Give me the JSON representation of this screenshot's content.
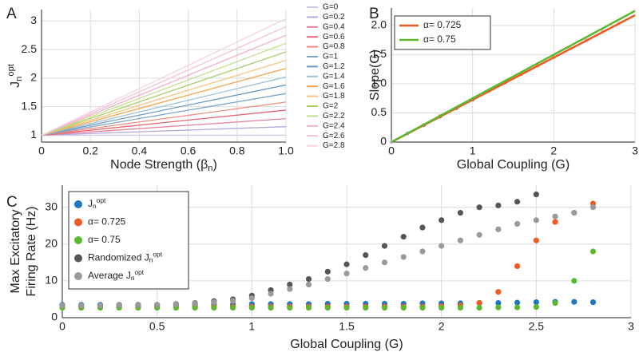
{
  "chart_data": [
    {
      "type": "line",
      "panel": "A",
      "xlabel": {
        "text": "Node Strength (β",
        "sub": "n",
        "after": ")"
      },
      "ylabel": {
        "text": "J",
        "sub": "n",
        "sup": "opt"
      },
      "xlim": [
        0,
        1
      ],
      "ylim": [
        0.88,
        3.2
      ],
      "xticks": [
        0,
        0.2,
        0.4,
        0.6,
        0.8,
        {
          "value": 1,
          "label": "1.0"
        }
      ],
      "yticks": [
        1,
        1.5,
        2,
        2.5,
        3
      ],
      "grid": true,
      "x": [
        0,
        1
      ],
      "series": [
        {
          "name": "G=0",
          "color": "#cfc8e6",
          "values": [
            1,
            1
          ]
        },
        {
          "name": "G=0.2",
          "color": "#b9a7d8",
          "values": [
            1,
            1.15
          ]
        },
        {
          "name": "G=0.4",
          "color": "#e5809c",
          "values": [
            1,
            1.29
          ]
        },
        {
          "name": "G=0.6",
          "color": "#e6646f",
          "values": [
            1,
            1.44
          ]
        },
        {
          "name": "G=0.8",
          "color": "#f08c80",
          "values": [
            1,
            1.58
          ]
        },
        {
          "name": "G=1",
          "color": "#7aa5c8",
          "values": [
            1,
            1.73
          ]
        },
        {
          "name": "G=1.2",
          "color": "#6c9cc4",
          "values": [
            1,
            1.88
          ]
        },
        {
          "name": "G=1.4",
          "color": "#9dc2da",
          "values": [
            1,
            2.02
          ]
        },
        {
          "name": "G=1.6",
          "color": "#f3a54a",
          "values": [
            1,
            2.17
          ]
        },
        {
          "name": "G=1.8",
          "color": "#f7c481",
          "values": [
            1,
            2.31
          ]
        },
        {
          "name": "G=2",
          "color": "#a6cf68",
          "values": [
            1,
            2.46
          ]
        },
        {
          "name": "G=2.2",
          "color": "#c4df8f",
          "values": [
            1,
            2.61
          ]
        },
        {
          "name": "G=2.4",
          "color": "#f2afc9",
          "values": [
            1,
            2.75
          ]
        },
        {
          "name": "G=2.6",
          "color": "#f5bfd4",
          "values": [
            1,
            2.9
          ]
        },
        {
          "name": "G=2.8",
          "color": "#f8cfe0",
          "values": [
            1,
            3.04
          ]
        }
      ]
    },
    {
      "type": "line",
      "panel": "B",
      "xlabel": "Global Coupling (G)",
      "ylabel": "Slope(G)",
      "xlim": [
        0,
        3
      ],
      "ylim": [
        0,
        2.3
      ],
      "xticks": [
        0,
        1,
        2,
        3
      ],
      "yticks": [
        0,
        0.5,
        {
          "value": 1,
          "label": "1.0"
        },
        1.5,
        {
          "value": 2,
          "label": "2.0"
        }
      ],
      "grid": true,
      "x": [
        0,
        3
      ],
      "series": [
        {
          "name": "α= 0.725",
          "color": "#f05a24",
          "values": [
            0,
            2.175
          ]
        },
        {
          "name": "α= 0.75",
          "color": "#5cb82e",
          "values": [
            0,
            2.25
          ]
        }
      ],
      "points": {
        "x": [
          0,
          0.2,
          0.4,
          0.6,
          0.8,
          1,
          1.2,
          1.4,
          1.6,
          1.8,
          2,
          2.2,
          2.4,
          2.6,
          2.8
        ],
        "values": [
          0,
          0.15,
          0.29,
          0.44,
          0.58,
          0.73,
          0.88,
          1.02,
          1.17,
          1.31,
          1.46,
          1.61,
          1.75,
          1.9,
          2.04
        ]
      }
    },
    {
      "type": "scatter",
      "panel": "C",
      "xlabel": "Global Coupling (G)",
      "ylabel": [
        "Max Excitatory",
        "Firing Rate (Hz)"
      ],
      "xlim": [
        0,
        3
      ],
      "ylim": [
        0,
        36
      ],
      "xticks": [
        0,
        0.5,
        1,
        1.5,
        2,
        2.5,
        3
      ],
      "yticks": [
        0,
        10,
        20,
        30
      ],
      "grid": true,
      "x": [
        0,
        0.1,
        0.2,
        0.3,
        0.4,
        0.5,
        0.6,
        0.7,
        0.8,
        0.9,
        1,
        1.1,
        1.2,
        1.3,
        1.4,
        1.5,
        1.6,
        1.7,
        1.8,
        1.9,
        2,
        2.1,
        2.2,
        2.3,
        2.4,
        2.5,
        2.6,
        2.7,
        2.8
      ],
      "series": [
        {
          "name": {
            "text": "J",
            "sub": "n",
            "sup": "opt"
          },
          "color": "#1f77c4",
          "values": [
            3.5,
            3.5,
            3.5,
            3.5,
            3.5,
            3.5,
            3.6,
            3.6,
            3.6,
            3.6,
            3.7,
            3.7,
            3.7,
            3.7,
            3.8,
            3.8,
            3.8,
            3.8,
            3.8,
            3.9,
            3.9,
            3.9,
            4,
            4,
            4.1,
            4.2,
            4.3,
            4.3,
            4.2
          ]
        },
        {
          "name": "α= 0.725",
          "color": "#f05a24",
          "values": [
            3,
            3,
            3,
            3,
            3,
            3,
            3,
            3,
            3,
            3,
            3,
            3,
            3,
            3,
            3,
            3,
            3,
            3,
            3,
            3,
            3.1,
            3.3,
            4,
            7,
            14,
            21,
            26,
            28.5,
            31
          ]
        },
        {
          "name": "α= 0.75",
          "color": "#5cb82e",
          "values": [
            2.7,
            2.7,
            2.7,
            2.7,
            2.7,
            2.7,
            2.7,
            2.7,
            2.7,
            2.7,
            2.7,
            2.7,
            2.7,
            2.7,
            2.7,
            2.7,
            2.7,
            2.7,
            2.7,
            2.7,
            2.7,
            2.7,
            2.7,
            2.8,
            2.8,
            2.9,
            4,
            10,
            18
          ]
        },
        {
          "name": {
            "text": "Randomized  J",
            "sub": "n",
            "sup": "opt"
          },
          "color": "#555555",
          "values": [
            3.3,
            3.3,
            3.3,
            3.4,
            3.4,
            3.5,
            3.7,
            4,
            4.5,
            5,
            6,
            7.5,
            9,
            10.5,
            12.5,
            14.5,
            17,
            19.5,
            22,
            24.5,
            26.5,
            28.5,
            30,
            30.5,
            31.5,
            33.5,
            null,
            null,
            null
          ]
        },
        {
          "name": {
            "text": "Average   J",
            "sub": "n",
            "sup": "opt"
          },
          "color": "#9a9a9a",
          "values": [
            3.3,
            3.3,
            3.3,
            3.4,
            3.4,
            3.5,
            3.6,
            3.9,
            4.2,
            4.6,
            5.3,
            6.5,
            7.8,
            9,
            10.5,
            12,
            13.5,
            15,
            16.5,
            18,
            19.5,
            21,
            22.5,
            24,
            25.5,
            26.5,
            27.5,
            28.5,
            30
          ]
        }
      ]
    }
  ]
}
